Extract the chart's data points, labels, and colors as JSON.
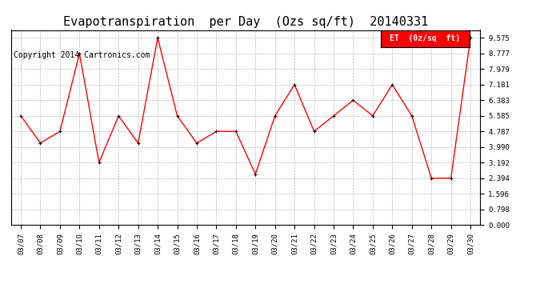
{
  "title": "Evapotranspiration  per Day  (Ozs sq/ft)  20140331",
  "copyright": "Copyright 2014 Cartronics.com",
  "legend_label": "ET  (0z/sq  ft)",
  "dates": [
    "03/07",
    "03/08",
    "03/09",
    "03/10",
    "03/11",
    "03/12",
    "03/13",
    "03/14",
    "03/15",
    "03/16",
    "03/17",
    "03/18",
    "03/19",
    "03/20",
    "03/21",
    "03/22",
    "03/23",
    "03/24",
    "03/25",
    "03/26",
    "03/27",
    "03/28",
    "03/29",
    "03/30"
  ],
  "values": [
    5.585,
    4.19,
    4.787,
    8.777,
    3.192,
    5.585,
    4.19,
    9.575,
    5.585,
    4.19,
    4.787,
    4.787,
    2.6,
    5.585,
    7.181,
    4.787,
    5.585,
    6.383,
    5.585,
    7.181,
    5.585,
    2.394,
    2.394,
    9.575
  ],
  "yticks": [
    0.0,
    0.798,
    1.596,
    2.394,
    3.192,
    3.99,
    4.787,
    5.585,
    6.383,
    7.181,
    7.979,
    8.777,
    9.575
  ],
  "ymax": 9.975,
  "ymin": 0.0,
  "line_color": "red",
  "marker_color": "black",
  "bg_color": "#ffffff",
  "grid_color": "#bbbbbb",
  "title_fontsize": 11,
  "copyright_fontsize": 7,
  "legend_bg": "red",
  "legend_fg": "white"
}
